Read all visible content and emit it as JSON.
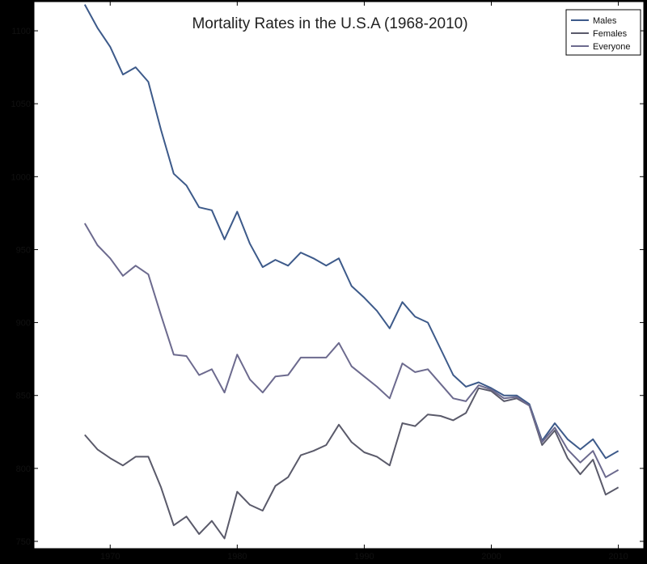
{
  "chart_data": {
    "type": "line",
    "title": "Mortality Rates in the U.S.A (1968-2010)",
    "xlabel": "",
    "ylabel": "",
    "xlim": [
      1964,
      2012
    ],
    "ylim": [
      745,
      1120
    ],
    "xticks": [
      1970,
      1980,
      1990,
      2000,
      2010
    ],
    "yticks": [
      750,
      800,
      850,
      900,
      950,
      1000,
      1050,
      1100
    ],
    "grid": false,
    "legend_position": "top-right",
    "x": [
      1968,
      1969,
      1970,
      1971,
      1972,
      1973,
      1974,
      1975,
      1976,
      1977,
      1978,
      1979,
      1980,
      1981,
      1982,
      1983,
      1984,
      1985,
      1986,
      1987,
      1988,
      1989,
      1990,
      1991,
      1992,
      1993,
      1994,
      1995,
      1996,
      1997,
      1998,
      1999,
      2000,
      2001,
      2002,
      2003,
      2004,
      2005,
      2006,
      2007,
      2008,
      2009,
      2010
    ],
    "series": [
      {
        "name": "Males",
        "color": "#3d5a8a",
        "values": [
          1118,
          1102,
          1089,
          1070,
          1075,
          1065,
          1032,
          1002,
          994,
          979,
          977,
          957,
          976,
          954,
          938,
          943,
          939,
          948,
          944,
          939,
          944,
          925,
          917,
          908,
          896,
          914,
          904,
          900,
          882,
          864,
          856,
          859,
          855,
          850,
          850,
          844,
          819,
          831,
          820,
          813,
          820,
          807,
          812
        ]
      },
      {
        "name": "Females",
        "color": "#5a5a6a",
        "values": [
          823,
          813,
          807,
          802,
          808,
          808,
          787,
          761,
          767,
          755,
          764,
          752,
          784,
          775,
          771,
          788,
          794,
          809,
          812,
          816,
          830,
          818,
          811,
          808,
          802,
          831,
          829,
          837,
          836,
          833,
          838,
          855,
          853,
          846,
          848,
          843,
          816,
          826,
          807,
          796,
          806,
          782,
          787
        ]
      },
      {
        "name": "Everyone",
        "color": "#6c6a8e",
        "values": [
          968,
          953,
          944,
          932,
          939,
          933,
          905,
          878,
          877,
          864,
          868,
          852,
          878,
          861,
          852,
          863,
          864,
          876,
          876,
          876,
          886,
          870,
          863,
          856,
          848,
          872,
          866,
          868,
          858,
          848,
          846,
          857,
          854,
          848,
          849,
          843,
          818,
          828,
          813,
          804,
          812,
          794,
          799
        ]
      }
    ]
  }
}
